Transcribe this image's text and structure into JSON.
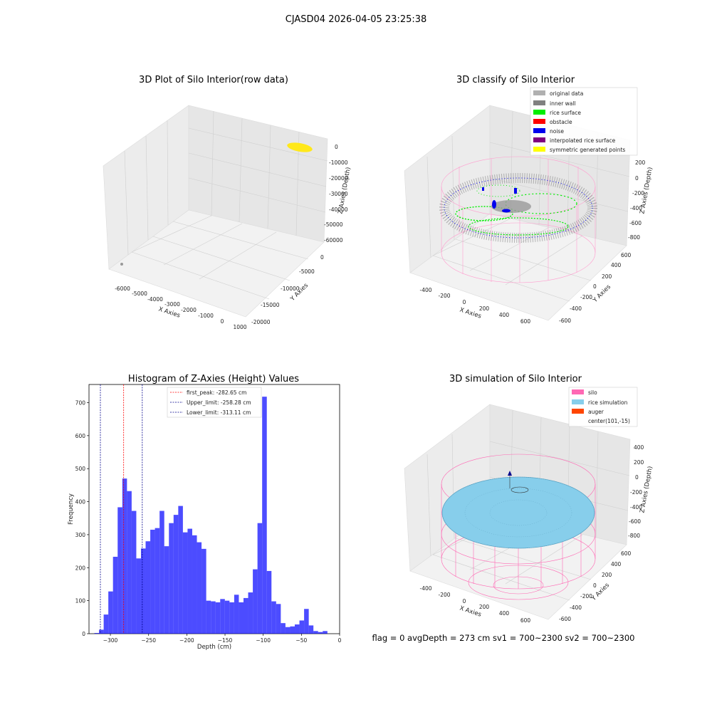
{
  "suptitle": "CJASD04 2026-04-05 23:25:38",
  "panel_raw": {
    "title": "3D Plot of Silo Interior(row data)",
    "xlabel": "X Axies",
    "ylabel": "Y Axies",
    "zlabel": "Z Axies (Depth)",
    "x_ticks": [
      "-6000",
      "-5000",
      "-4000",
      "-3000",
      "-2000",
      "-1000",
      "0",
      "1000"
    ],
    "y_ticks": [
      "0",
      "-5000",
      "-10000",
      "-15000",
      "-20000"
    ],
    "z_ticks": [
      "0",
      "-10000",
      "-20000",
      "-30000",
      "-40000",
      "-50000",
      "-60000"
    ]
  },
  "panel_classify": {
    "title": "3D classify of Silo Interior",
    "xlabel": "X Axies",
    "ylabel": "Y Axies",
    "zlabel": "Z Axies (Depth)",
    "x_ticks": [
      "-400",
      "-200",
      "0",
      "200",
      "400",
      "600"
    ],
    "y_ticks": [
      "600",
      "400",
      "200",
      "0",
      "-200",
      "-400",
      "-600"
    ],
    "z_ticks": [
      "200",
      "0",
      "-200",
      "-400",
      "-600",
      "-800"
    ],
    "legend": [
      {
        "label": "original data",
        "color": "#b0b0b0"
      },
      {
        "label": "inner wall",
        "color": "#808080"
      },
      {
        "label": "rice surface",
        "color": "#00ee00"
      },
      {
        "label": "obstacle",
        "color": "#ff0000"
      },
      {
        "label": "noise",
        "color": "#0000ee"
      },
      {
        "label": "interpolated rice surface",
        "color": "#800080"
      },
      {
        "label": "symmetric generated points",
        "color": "#ffff00"
      }
    ]
  },
  "panel_sim": {
    "title": "3D simulation of Silo Interior",
    "xlabel": "X Axies",
    "ylabel": "Y Axies",
    "zlabel": "Z Axies (Depth)",
    "x_ticks": [
      "-400",
      "-200",
      "0",
      "200",
      "400",
      "600"
    ],
    "y_ticks": [
      "600",
      "400",
      "200",
      "0",
      "-200",
      "-400",
      "-600"
    ],
    "z_ticks": [
      "400",
      "200",
      "0",
      "-200",
      "-400",
      "-600",
      "-800"
    ],
    "legend": [
      {
        "label": "silo",
        "color": "#ff69b4"
      },
      {
        "label": "rice simulation",
        "color": "#87ceeb"
      },
      {
        "label": "auger",
        "color": "#ff4500"
      },
      {
        "label": "center(101,-15)",
        "color": ""
      }
    ],
    "status_text": "flag = 0     avgDepth = 273 cm  sv1 = 700~2300  sv2 = 700~2300"
  },
  "chart_data": {
    "type": "bar",
    "title": "Histogram of Z-Axies (Height) Values",
    "xlabel": "Depth (cm)",
    "ylabel": "Frequency",
    "xlim": [
      -328,
      0
    ],
    "ylim": [
      0,
      755
    ],
    "x_ticks": [
      -300,
      -250,
      -200,
      -150,
      -100,
      -50,
      0
    ],
    "y_ticks": [
      0,
      100,
      200,
      300,
      400,
      500,
      600,
      700
    ],
    "bin_start": -321,
    "bin_width": 6.1,
    "values": [
      2,
      12,
      58,
      128,
      233,
      383,
      470,
      432,
      372,
      228,
      258,
      280,
      315,
      320,
      372,
      265,
      335,
      360,
      387,
      307,
      318,
      298,
      277,
      257,
      100,
      98,
      95,
      105,
      100,
      95,
      118,
      95,
      108,
      125,
      195,
      335,
      718,
      190,
      98,
      90,
      32,
      20,
      22,
      28,
      40,
      75,
      25,
      8,
      5,
      8
    ],
    "bar_color": "#0000ff",
    "bar_alpha": 0.7,
    "vlines": [
      {
        "label": "first_peak: -282.65 cm",
        "x": -282.65,
        "color": "#ff0000"
      },
      {
        "label": "Upper_limit: -258.28 cm",
        "x": -258.28,
        "color": "#00008b"
      },
      {
        "label": "Lower_limit: -313.11 cm",
        "x": -313.11,
        "color": "#00008b"
      }
    ],
    "legend_position": "upper-center",
    "grid": false
  }
}
